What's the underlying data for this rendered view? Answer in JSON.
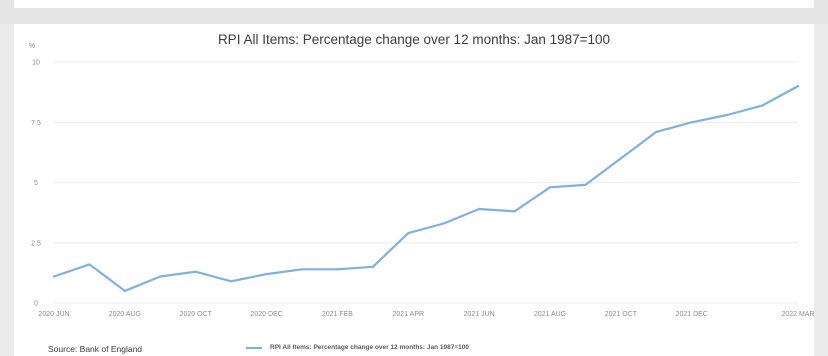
{
  "footer": {
    "source": "Source: Bank of England"
  },
  "colors": {
    "line": "#7fb1df",
    "grid": "#ececec",
    "axis_text": "#8c8c8c"
  },
  "chart_data": {
    "type": "line",
    "title": "RPI All Items: Percentage change over 12 months: Jan 1987=100",
    "y_unit": "%",
    "ylim": [
      0,
      10
    ],
    "y_ticks": [
      "0",
      "2.5",
      "5",
      "7.5",
      "10"
    ],
    "x_tick_labels": [
      "2020 JUN",
      "2020 AUG",
      "2020 OCT",
      "2020 DEC",
      "2021 FEB",
      "2021 APR",
      "2021 JUN",
      "2021 AUG",
      "2021 OCT",
      "2021 DEC",
      "2022 MAR"
    ],
    "grid": true,
    "legend_position": "bottom",
    "series": [
      {
        "name": "RPI All Items: Percentage change over 12 months: Jan 1987=100",
        "x": [
          "2020 JUN",
          "2020 JUL",
          "2020 AUG",
          "2020 SEP",
          "2020 OCT",
          "2020 NOV",
          "2020 DEC",
          "2021 JAN",
          "2021 FEB",
          "2021 MAR",
          "2021 APR",
          "2021 MAY",
          "2021 JUN",
          "2021 JUL",
          "2021 AUG",
          "2021 SEP",
          "2021 OCT",
          "2021 NOV",
          "2021 DEC",
          "2022 JAN",
          "2022 FEB",
          "2022 MAR"
        ],
        "values": [
          1.1,
          1.6,
          0.5,
          1.1,
          1.3,
          0.9,
          1.2,
          1.4,
          1.4,
          1.5,
          2.9,
          3.3,
          3.9,
          3.8,
          4.8,
          4.9,
          6.0,
          7.1,
          7.5,
          7.8,
          8.2,
          9.0
        ]
      }
    ]
  }
}
